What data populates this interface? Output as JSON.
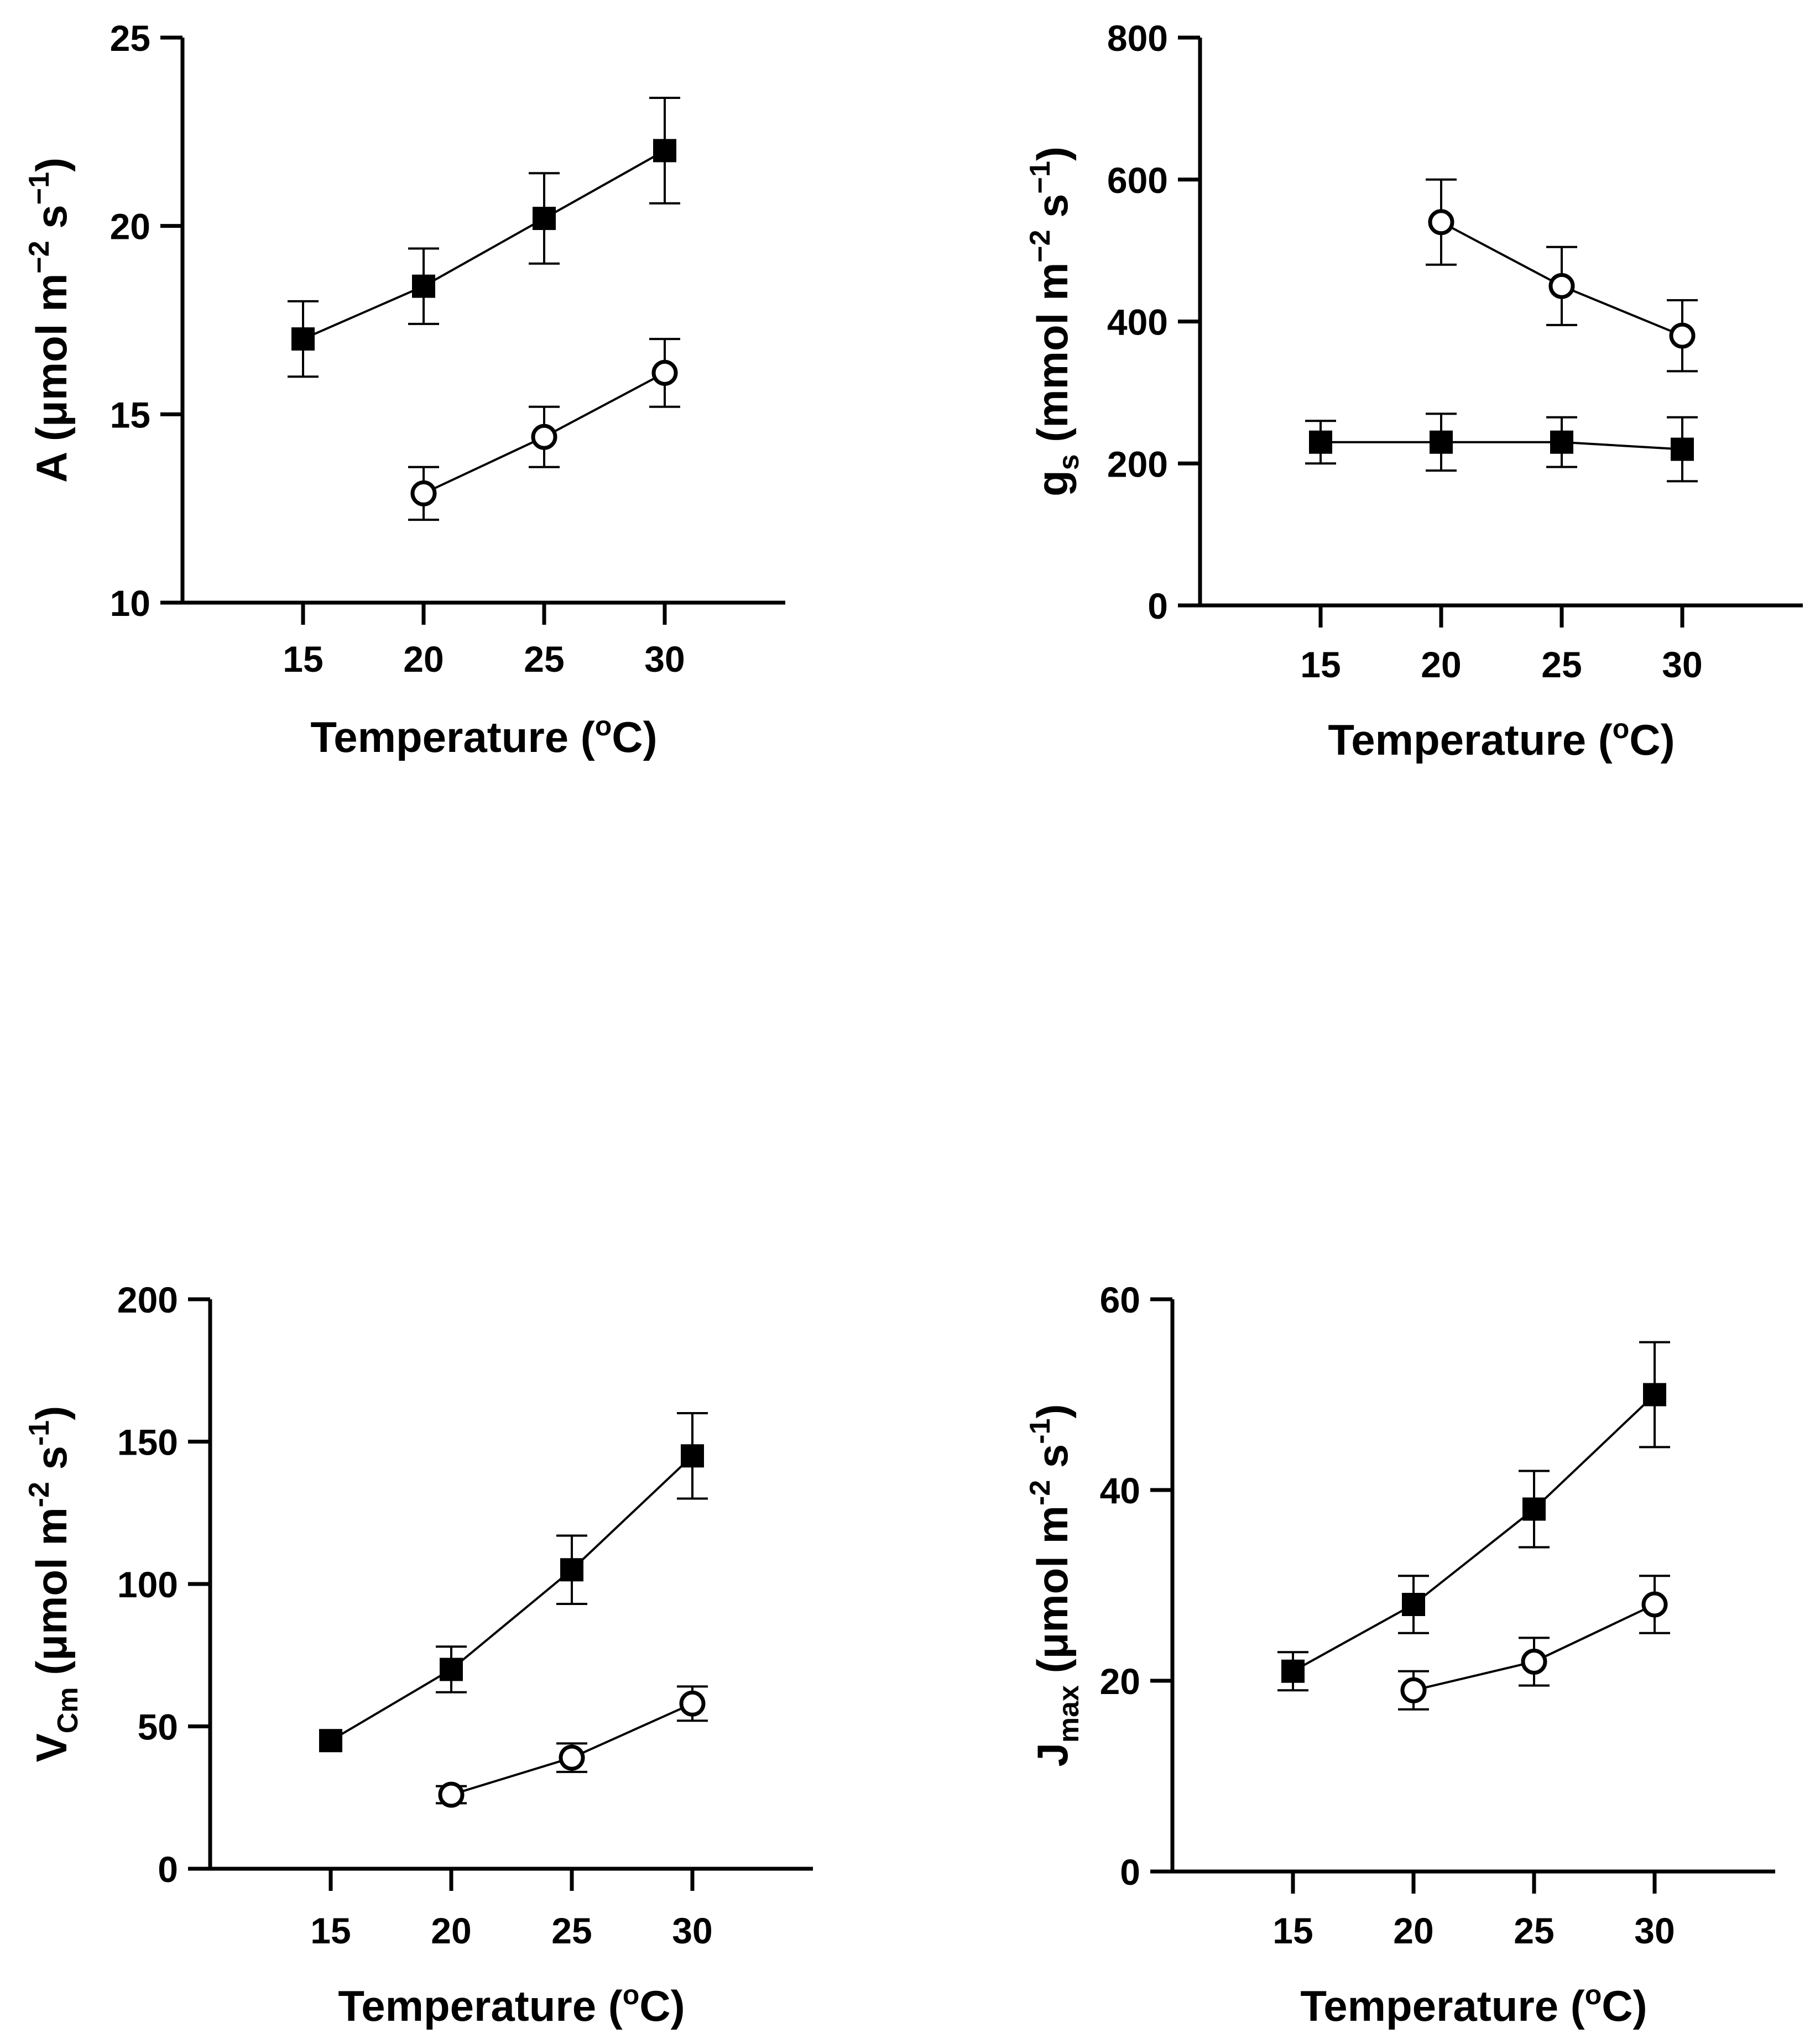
{
  "chart_data": [
    {
      "type": "line",
      "id": "A",
      "ylabel_parts": [
        {
          "t": "A (μmol m"
        },
        {
          "t": "−2",
          "sup": true
        },
        {
          "t": " s"
        },
        {
          "t": "−1",
          "sup": true
        },
        {
          "t": ")"
        }
      ],
      "xlabel_main": "Temperature (",
      "xlabel_sup": "o",
      "xlabel_end": "C)",
      "xlim": [
        10,
        35
      ],
      "ylim": [
        10,
        25
      ],
      "xticks": [
        15,
        20,
        25,
        30
      ],
      "yticks": [
        10,
        15,
        20,
        25
      ],
      "series": [
        {
          "name": "filled-square",
          "marker": "square",
          "x": [
            15,
            20,
            25,
            30
          ],
          "y": [
            17.0,
            18.4,
            20.2,
            22.0
          ],
          "err": [
            1.0,
            1.0,
            1.2,
            1.4
          ]
        },
        {
          "name": "open-circle",
          "marker": "circle",
          "x": [
            20,
            25,
            30
          ],
          "y": [
            12.9,
            14.4,
            16.1
          ],
          "err": [
            0.7,
            0.8,
            0.9
          ]
        }
      ]
    },
    {
      "type": "line",
      "id": "gs",
      "ylabel_parts": [
        {
          "t": "g"
        },
        {
          "t": "s",
          "sub": true
        },
        {
          "t": " (mmol m"
        },
        {
          "t": "−2",
          "sup": true
        },
        {
          "t": " s"
        },
        {
          "t": "−1",
          "sup": true
        },
        {
          "t": ")"
        }
      ],
      "xlabel_main": "Temperature (",
      "xlabel_sup": "o",
      "xlabel_end": "C)",
      "xlim": [
        10,
        35
      ],
      "ylim": [
        0,
        800
      ],
      "xticks": [
        15,
        20,
        25,
        30
      ],
      "yticks": [
        0,
        200,
        400,
        600,
        800
      ],
      "series": [
        {
          "name": "filled-square",
          "marker": "square",
          "x": [
            15,
            20,
            25,
            30
          ],
          "y": [
            230,
            230,
            230,
            220
          ],
          "err": [
            30,
            40,
            35,
            45
          ]
        },
        {
          "name": "open-circle",
          "marker": "circle",
          "x": [
            20,
            25,
            30
          ],
          "y": [
            540,
            450,
            380
          ],
          "err": [
            60,
            55,
            50
          ]
        }
      ]
    },
    {
      "type": "line",
      "id": "Vcm",
      "ylabel_parts": [
        {
          "t": "V"
        },
        {
          "t": "Cm",
          "sub": true
        },
        {
          "t": " (μmol m"
        },
        {
          "t": "-2",
          "sup": true
        },
        {
          "t": " s"
        },
        {
          "t": "-1",
          "sup": true
        },
        {
          "t": ")"
        }
      ],
      "xlabel_main": "Temperature (",
      "xlabel_sup": "o",
      "xlabel_end": "C)",
      "xlim": [
        10,
        35
      ],
      "ylim": [
        0,
        200
      ],
      "xticks": [
        15,
        20,
        25,
        30
      ],
      "yticks": [
        0,
        50,
        100,
        150,
        200
      ],
      "series": [
        {
          "name": "filled-square",
          "marker": "square",
          "x": [
            15,
            20,
            25,
            30
          ],
          "y": [
            45,
            70,
            105,
            145
          ],
          "err": [
            0,
            8,
            12,
            15
          ]
        },
        {
          "name": "open-circle",
          "marker": "circle",
          "x": [
            20,
            25,
            30
          ],
          "y": [
            26,
            39,
            58
          ],
          "err": [
            3,
            5,
            6
          ]
        }
      ]
    },
    {
      "type": "line",
      "id": "Jmax",
      "ylabel_parts": [
        {
          "t": "J"
        },
        {
          "t": "max",
          "sub": true
        },
        {
          "t": " (μmol m"
        },
        {
          "t": "-2",
          "sup": true
        },
        {
          "t": " s"
        },
        {
          "t": "-1",
          "sup": true
        },
        {
          "t": ")"
        }
      ],
      "xlabel_main": "Temperature (",
      "xlabel_sup": "o",
      "xlabel_end": "C)",
      "xlim": [
        10,
        35
      ],
      "ylim": [
        0,
        60
      ],
      "xticks": [
        15,
        20,
        25,
        30
      ],
      "yticks": [
        0,
        20,
        40,
        60
      ],
      "series": [
        {
          "name": "filled-square",
          "marker": "square",
          "x": [
            15,
            20,
            25,
            30
          ],
          "y": [
            21,
            28,
            38,
            50
          ],
          "err": [
            2,
            3,
            4,
            5.5
          ]
        },
        {
          "name": "open-circle",
          "marker": "circle",
          "x": [
            20,
            25,
            30
          ],
          "y": [
            19,
            22,
            28
          ],
          "err": [
            2,
            2.5,
            3
          ]
        }
      ]
    }
  ]
}
